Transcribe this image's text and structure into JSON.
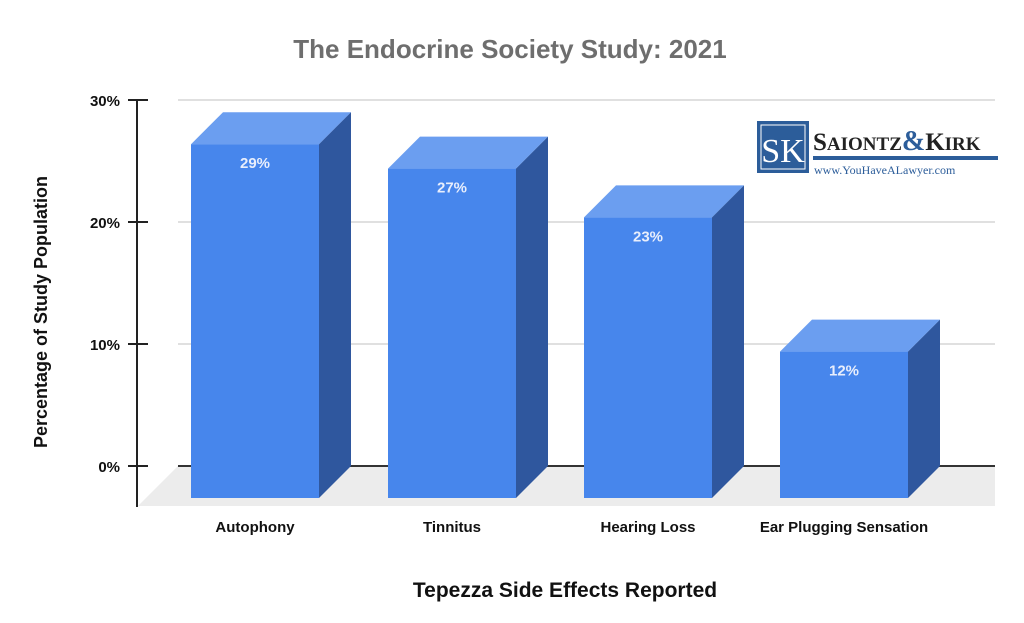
{
  "chart_data": {
    "type": "bar",
    "style": "3d",
    "title": "The Endocrine Society Study: 2021",
    "xlabel": "Tepezza Side Effects Reported",
    "ylabel": "Percentage of Study Population",
    "categories": [
      "Autophony",
      "Tinnitus",
      "Hearing Loss",
      "Ear Plugging Sensation"
    ],
    "values": [
      29,
      27,
      23,
      12
    ],
    "data_labels": [
      "29%",
      "27%",
      "23%",
      "12%"
    ],
    "ylim": [
      0,
      30
    ],
    "yticks": [
      0,
      10,
      20,
      30
    ],
    "ytick_labels": [
      "0%",
      "10%",
      "20%",
      "30%"
    ],
    "grid": true,
    "colors": {
      "front": "#4786ec",
      "top": "#6b9ef0",
      "side": "#2f579e",
      "title": "#6e6e6e"
    }
  },
  "logo": {
    "monogram": "SK",
    "name": "Saiontz & Kirk",
    "url": "www.YouHaveALawyer.com"
  }
}
